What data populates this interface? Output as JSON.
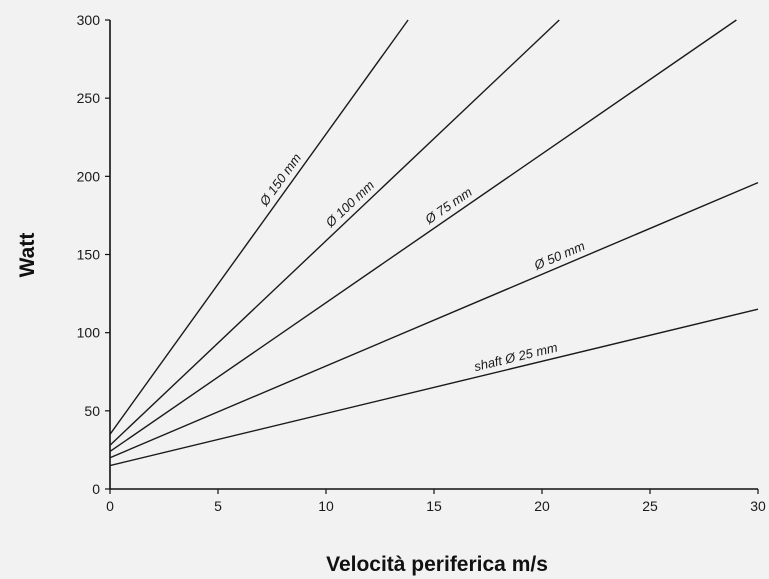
{
  "chart_data": {
    "type": "line",
    "xlabel": "Velocità periferica m/s",
    "ylabel": "Watt",
    "xlim": [
      0,
      30
    ],
    "ylim": [
      0,
      300
    ],
    "xticks": [
      0,
      5,
      10,
      15,
      20,
      25,
      30
    ],
    "yticks": [
      0,
      50,
      100,
      150,
      200,
      250,
      300
    ],
    "grid": false,
    "line_color": "#1a1a1a",
    "background": "#f2f2f2",
    "series": [
      {
        "name": "shaft Ø 25 mm",
        "x": [
          0,
          30
        ],
        "y": [
          15,
          115
        ]
      },
      {
        "name": "Ø 50 mm",
        "x": [
          0,
          30
        ],
        "y": [
          20,
          196
        ]
      },
      {
        "name": "Ø 75 mm",
        "x": [
          0,
          29
        ],
        "y": [
          24,
          300
        ]
      },
      {
        "name": "Ø 100 mm",
        "x": [
          0,
          20.8
        ],
        "y": [
          28,
          300
        ]
      },
      {
        "name": "Ø 150 mm",
        "x": [
          0,
          13.8
        ],
        "y": [
          35,
          300
        ]
      }
    ]
  }
}
